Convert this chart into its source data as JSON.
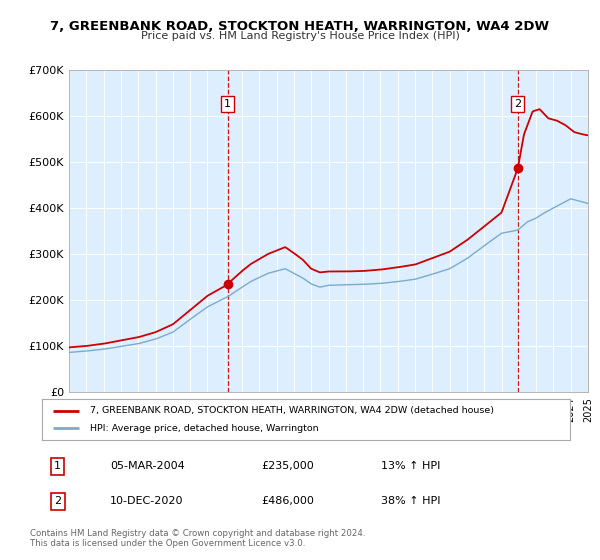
{
  "title": "7, GREENBANK ROAD, STOCKTON HEATH, WARRINGTON, WA4 2DW",
  "subtitle": "Price paid vs. HM Land Registry's House Price Index (HPI)",
  "ylim": [
    0,
    700000
  ],
  "yticks": [
    0,
    100000,
    200000,
    300000,
    400000,
    500000,
    600000,
    700000
  ],
  "ytick_labels": [
    "£0",
    "£100K",
    "£200K",
    "£300K",
    "£400K",
    "£500K",
    "£600K",
    "£700K"
  ],
  "x_start_year": 1995,
  "x_end_year": 2025,
  "red_color": "#cc0000",
  "blue_color": "#7aabcc",
  "bg_color": "#ddeeff",
  "grid_color": "#ffffff",
  "purchase1_year": 2004.17,
  "purchase1_value": 235000,
  "purchase2_year": 2020.94,
  "purchase2_value": 486000,
  "purchase1_date": "05-MAR-2004",
  "purchase1_hpi_pct": "13%",
  "purchase2_date": "10-DEC-2020",
  "purchase2_hpi_pct": "38%",
  "legend_line1": "7, GREENBANK ROAD, STOCKTON HEATH, WARRINGTON, WA4 2DW (detached house)",
  "legend_line2": "HPI: Average price, detached house, Warrington",
  "footer1": "Contains HM Land Registry data © Crown copyright and database right 2024.",
  "footer2": "This data is licensed under the Open Government Licence v3.0.",
  "hpi_key_times": [
    1995.0,
    1996.0,
    1997.0,
    1998.0,
    1999.0,
    2000.0,
    2001.0,
    2002.0,
    2003.0,
    2004.0,
    2004.17,
    2005.0,
    2005.5,
    2006.5,
    2007.5,
    2008.0,
    2008.5,
    2009.0,
    2009.5,
    2010.0,
    2011.0,
    2012.0,
    2013.0,
    2014.0,
    2015.0,
    2016.0,
    2017.0,
    2018.0,
    2019.0,
    2020.0,
    2020.94,
    2021.5,
    2022.0,
    2022.5,
    2023.0,
    2023.5,
    2024.0,
    2024.5,
    2025.0
  ],
  "hpi_key_vals": [
    86000,
    89000,
    93000,
    99000,
    105000,
    115000,
    130000,
    158000,
    185000,
    204000,
    207000,
    228000,
    240000,
    258000,
    268000,
    258000,
    248000,
    235000,
    228000,
    232000,
    233000,
    234000,
    236000,
    240000,
    245000,
    256000,
    268000,
    290000,
    318000,
    345000,
    352000,
    370000,
    378000,
    390000,
    400000,
    410000,
    420000,
    415000,
    410000
  ],
  "prop_key_times": [
    1995.0,
    1996.0,
    1997.0,
    1998.0,
    1999.0,
    2000.0,
    2001.0,
    2002.0,
    2003.0,
    2004.0,
    2004.17,
    2005.0,
    2005.5,
    2006.5,
    2007.5,
    2008.0,
    2008.5,
    2009.0,
    2009.5,
    2010.0,
    2011.0,
    2012.0,
    2013.0,
    2014.0,
    2015.0,
    2016.0,
    2017.0,
    2018.0,
    2019.0,
    2020.0,
    2020.94,
    2021.3,
    2021.8,
    2022.2,
    2022.7,
    2023.2,
    2023.7,
    2024.2,
    2024.7,
    2025.0
  ],
  "prop_key_vals": [
    97000,
    100000,
    105000,
    112000,
    119000,
    130000,
    147000,
    178000,
    209000,
    230000,
    235000,
    263000,
    278000,
    300000,
    315000,
    302000,
    288000,
    268000,
    260000,
    262000,
    262000,
    263000,
    266000,
    271000,
    277000,
    291000,
    305000,
    330000,
    360000,
    390000,
    486000,
    560000,
    610000,
    615000,
    595000,
    590000,
    580000,
    565000,
    560000,
    558000
  ]
}
